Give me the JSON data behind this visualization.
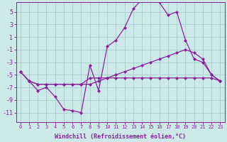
{
  "background_color": "#cce8e8",
  "grid_color": "#a8cccc",
  "line_color": "#882299",
  "line_width": 0.9,
  "marker": "D",
  "marker_size": 2.0,
  "xlabel": "Windchill (Refroidissement éolien,°C)",
  "xlabel_fontsize": 6.0,
  "xtick_fontsize": 5.0,
  "ytick_fontsize": 6.0,
  "xlim": [
    -0.5,
    23.5
  ],
  "ylim": [
    -12.5,
    6.5
  ],
  "yticks": [
    -11,
    -9,
    -7,
    -5,
    -3,
    -1,
    1,
    3,
    5
  ],
  "xticks": [
    0,
    1,
    2,
    3,
    4,
    5,
    6,
    7,
    8,
    9,
    10,
    11,
    12,
    13,
    14,
    15,
    16,
    17,
    18,
    19,
    20,
    21,
    22,
    23
  ],
  "series1_x": [
    0,
    1,
    2,
    3,
    4,
    5,
    6,
    7,
    8,
    9,
    10,
    11,
    12,
    13,
    14,
    15,
    16,
    17,
    18,
    19,
    20,
    21,
    22,
    23
  ],
  "series1_y": [
    -4.5,
    -6.0,
    -7.5,
    -7.0,
    -8.5,
    -10.5,
    -10.7,
    -11.0,
    -3.5,
    -7.5,
    -0.5,
    0.5,
    2.5,
    5.5,
    7.0,
    7.0,
    6.5,
    4.5,
    5.0,
    0.5,
    -2.5,
    -3.0,
    -5.0,
    -6.0
  ],
  "series2_x": [
    0,
    1,
    2,
    3,
    4,
    5,
    6,
    7,
    8,
    9,
    10,
    11,
    12,
    13,
    14,
    15,
    16,
    17,
    18,
    19,
    20,
    21,
    22,
    23
  ],
  "series2_y": [
    -4.5,
    -6.0,
    -6.5,
    -6.5,
    -6.5,
    -6.5,
    -6.5,
    -6.5,
    -6.5,
    -6.0,
    -5.5,
    -5.0,
    -4.5,
    -4.0,
    -3.5,
    -3.0,
    -2.5,
    -2.0,
    -1.5,
    -1.0,
    -1.5,
    -2.5,
    -5.0,
    -6.0
  ],
  "series3_x": [
    0,
    1,
    2,
    3,
    4,
    5,
    6,
    7,
    8,
    9,
    10,
    11,
    12,
    13,
    14,
    15,
    16,
    17,
    18,
    19,
    20,
    21,
    22,
    23
  ],
  "series3_y": [
    -4.5,
    -6.0,
    -6.5,
    -6.5,
    -6.5,
    -6.5,
    -6.5,
    -6.5,
    -5.5,
    -5.5,
    -5.5,
    -5.5,
    -5.5,
    -5.5,
    -5.5,
    -5.5,
    -5.5,
    -5.5,
    -5.5,
    -5.5,
    -5.5,
    -5.5,
    -5.5,
    -6.0
  ]
}
